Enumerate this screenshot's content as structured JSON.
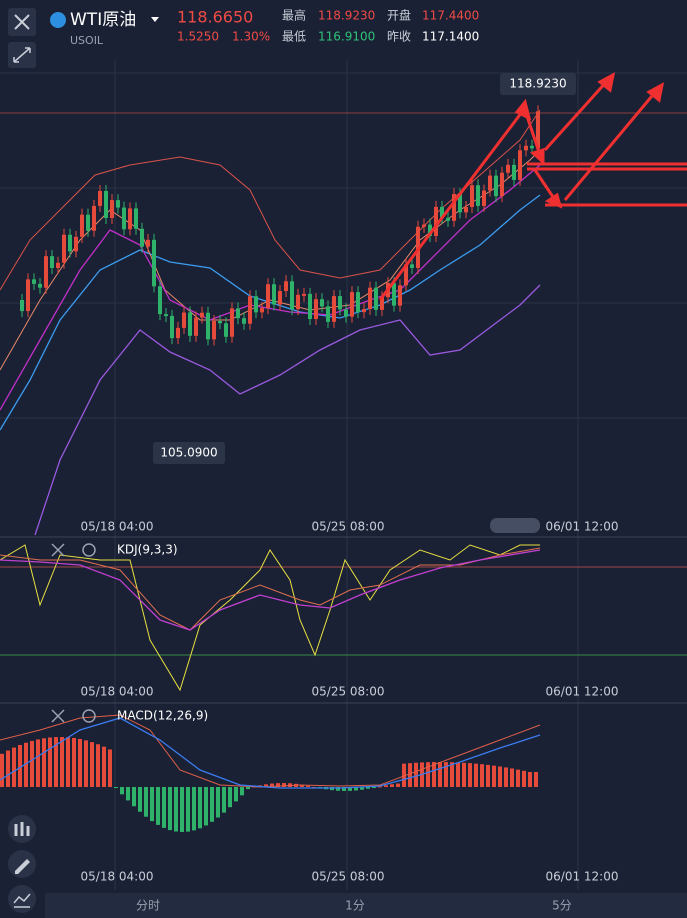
{
  "header": {
    "symbol": "WTI原油",
    "code": "USOIL",
    "price": "118.6650",
    "change": "1.5250",
    "change_pct": "1.30%",
    "stats": [
      {
        "label": "最高",
        "value": "118.9230"
      },
      {
        "label": "开盘",
        "value": "117.4400"
      },
      {
        "label": "最低",
        "value": "116.9100"
      },
      {
        "label": "昨收",
        "value": "117.1400"
      }
    ]
  },
  "main_chart": {
    "high_marker": "118.9230",
    "low_marker": "105.0900",
    "time_labels": [
      "05/18 04:00",
      "05/25 08:00",
      "06/01 12:00"
    ]
  },
  "kdj": {
    "label": "KDJ(9,3,3)",
    "time_labels": [
      "05/18 04:00",
      "05/25 08:00",
      "06/01 12:00"
    ]
  },
  "macd": {
    "label": "MACD(12,26,9)",
    "time_labels": [
      "05/18 04:00",
      "05/25 08:00",
      "06/01 12:00"
    ]
  },
  "tabs": [
    "分时",
    "1分",
    "5分"
  ]
}
